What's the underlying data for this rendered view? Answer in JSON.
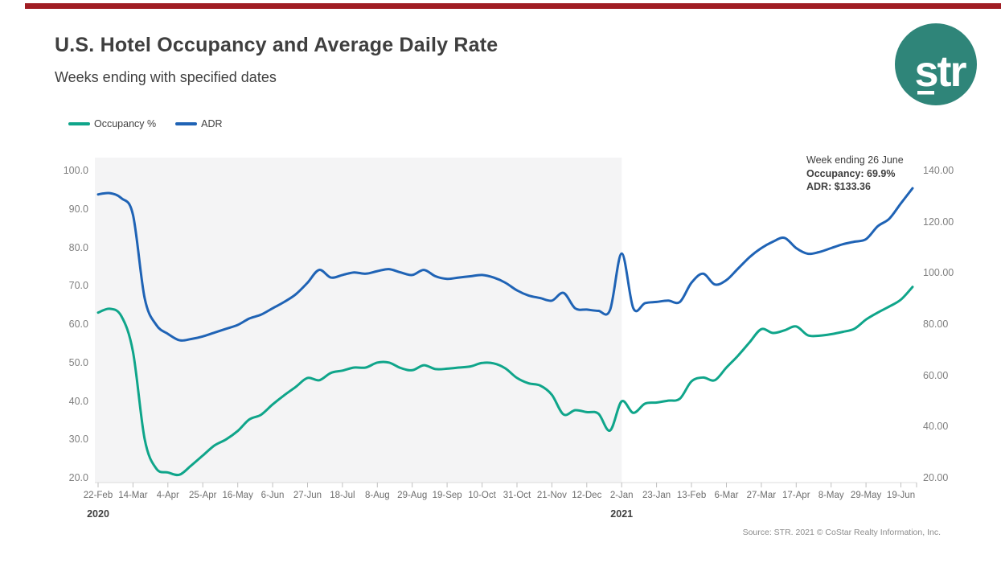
{
  "header": {
    "title": "U.S. Hotel Occupancy and Average Daily Rate",
    "subtitle": "Weeks ending with specified dates"
  },
  "accent_bar_color": "#A01D23",
  "logo": {
    "text": "str",
    "circle_color": "#2F8579",
    "text_color": "#FFFFFF"
  },
  "footer": {
    "source": "Source: STR. 2021 © CoStar Realty Information, Inc."
  },
  "chart_data": {
    "type": "line",
    "title": "U.S. Hotel Occupancy and Average Daily Rate",
    "subtitle": "Weeks ending with specified dates",
    "x_unit": "week ending date",
    "n_points": 71,
    "x_tick_week_interval": 3,
    "x_tick_labels": [
      "22-Feb",
      "14-Mar",
      "4-Apr",
      "25-Apr",
      "16-May",
      "6-Jun",
      "27-Jun",
      "18-Jul",
      "8-Aug",
      "29-Aug",
      "19-Sep",
      "10-Oct",
      "31-Oct",
      "21-Nov",
      "12-Dec",
      "2-Jan",
      "23-Jan",
      "13-Feb",
      "6-Mar",
      "27-Mar",
      "17-Apr",
      "8-May",
      "29-May",
      "19-Jun"
    ],
    "year_markers": [
      {
        "tick_index": 0,
        "label": "2020"
      },
      {
        "tick_index": 15,
        "label": "2021"
      }
    ],
    "left_axis": {
      "label": "Occupancy %",
      "min": 20,
      "max": 100,
      "ticks": [
        "100.0",
        "90.0",
        "80.0",
        "70.0",
        "60.0",
        "50.0",
        "40.0",
        "30.0",
        "20.0"
      ]
    },
    "right_axis": {
      "label": "ADR",
      "min": 20,
      "max": 140,
      "ticks": [
        "140.00",
        "120.00",
        "100.00",
        "80.00",
        "60.00",
        "40.00",
        "20.00"
      ]
    },
    "shaded_region": {
      "from_week": 0,
      "to_week": 45,
      "color": "#F4F4F5",
      "meaning": "2020 portion of timeline"
    },
    "legend_position": "top-left",
    "grid": false,
    "series": [
      {
        "name": "Occupancy %",
        "axis": "left",
        "color": "#0FA58A",
        "values": [
          63.2,
          64.2,
          62.3,
          53.0,
          30.3,
          22.6,
          21.6,
          21.0,
          23.4,
          26.0,
          28.6,
          30.2,
          32.4,
          35.4,
          36.6,
          39.3,
          41.7,
          43.9,
          46.2,
          45.6,
          47.5,
          48.1,
          48.9,
          48.9,
          50.2,
          50.2,
          48.8,
          48.2,
          49.5,
          48.5,
          48.6,
          48.9,
          49.2,
          50.1,
          50.0,
          48.7,
          46.2,
          44.8,
          44.2,
          41.8,
          36.7,
          37.8,
          37.3,
          36.9,
          32.5,
          40.1,
          37.1,
          39.5,
          39.8,
          40.3,
          40.8,
          45.3,
          46.3,
          45.6,
          48.9,
          52.0,
          55.5,
          58.9,
          57.9,
          58.6,
          59.6,
          57.3,
          57.2,
          57.6,
          58.2,
          59.0,
          61.4,
          63.2,
          64.8,
          66.6,
          69.9
        ]
      },
      {
        "name": "ADR",
        "axis": "right",
        "color": "#1F63B5",
        "values": [
          131.0,
          131.5,
          129.5,
          123.0,
          90.5,
          80.0,
          76.5,
          74.0,
          74.5,
          75.5,
          77.0,
          78.5,
          80.0,
          82.5,
          84.0,
          86.5,
          89.0,
          92.0,
          96.5,
          101.5,
          98.5,
          99.5,
          100.5,
          100.0,
          101.0,
          101.8,
          100.5,
          99.5,
          101.5,
          99.0,
          98.0,
          98.5,
          99.0,
          99.5,
          98.5,
          96.5,
          93.5,
          91.5,
          90.5,
          89.5,
          92.5,
          86.5,
          86.0,
          85.5,
          85.8,
          107.9,
          86.5,
          88.5,
          89.0,
          89.5,
          89.0,
          96.5,
          100.0,
          95.8,
          97.5,
          102.0,
          106.5,
          110.0,
          112.5,
          114.0,
          110.0,
          107.8,
          108.5,
          110.0,
          111.5,
          112.5,
          113.5,
          118.5,
          121.5,
          127.5,
          133.36
        ]
      }
    ],
    "annotation": {
      "line1": "Week ending 26 June",
      "line2": "Occupancy: 69.9%",
      "line3": "ADR: $133.36"
    }
  }
}
